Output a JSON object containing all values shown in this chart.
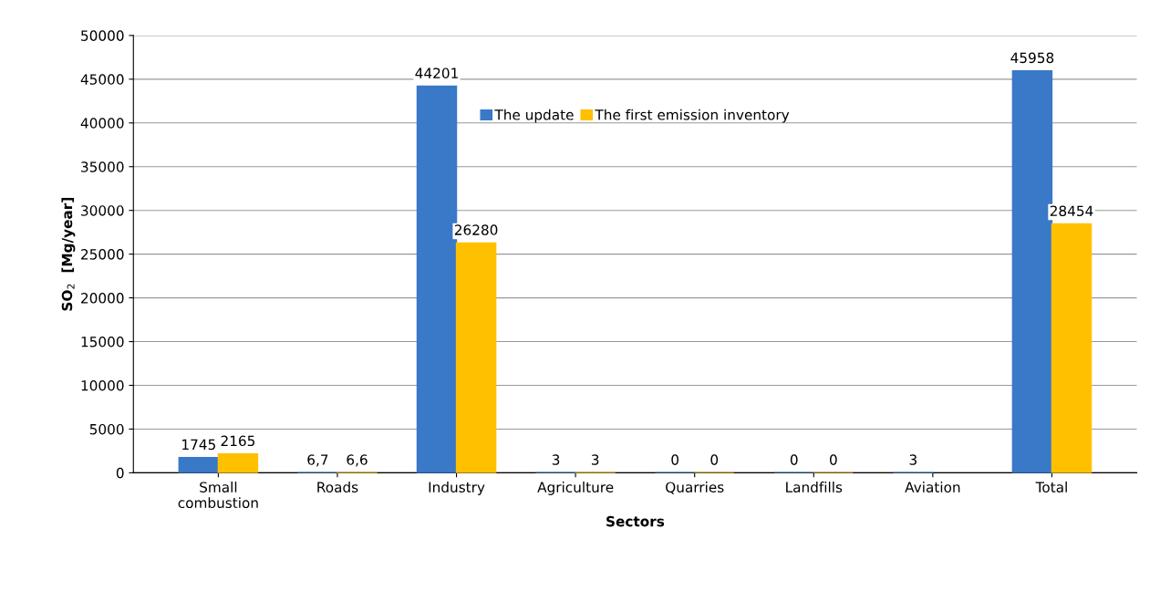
{
  "chart_data": {
    "type": "bar",
    "xlabel": "Sectors",
    "ylabel": "SO$_{2}$  [Mg/year]",
    "categories": [
      "Small\ncombustion",
      "Roads",
      "Industry",
      "Agriculture",
      "Quarries",
      "Landfills",
      "Aviation",
      "Total"
    ],
    "series": [
      {
        "name": "The update",
        "color": "#3a78c8",
        "values": [
          1745,
          6.7,
          44201,
          3,
          0,
          0,
          3,
          45958
        ],
        "value_labels": [
          "1745",
          "6,7",
          "44201",
          "3",
          "0",
          "0",
          "3",
          "45958"
        ]
      },
      {
        "name": "The first emission inventory",
        "color": "#ffc000",
        "values": [
          2165,
          6.6,
          26280,
          3,
          0,
          0,
          null,
          28454
        ],
        "value_labels": [
          "2165",
          "6,6",
          "26280",
          "3",
          "0",
          "0",
          null,
          "28454"
        ]
      }
    ],
    "ylim": [
      0,
      50000
    ],
    "yticks": [
      0,
      5000,
      10000,
      15000,
      20000,
      25000,
      30000,
      35000,
      40000,
      45000,
      50000
    ],
    "grid": "y",
    "legend": "top"
  }
}
